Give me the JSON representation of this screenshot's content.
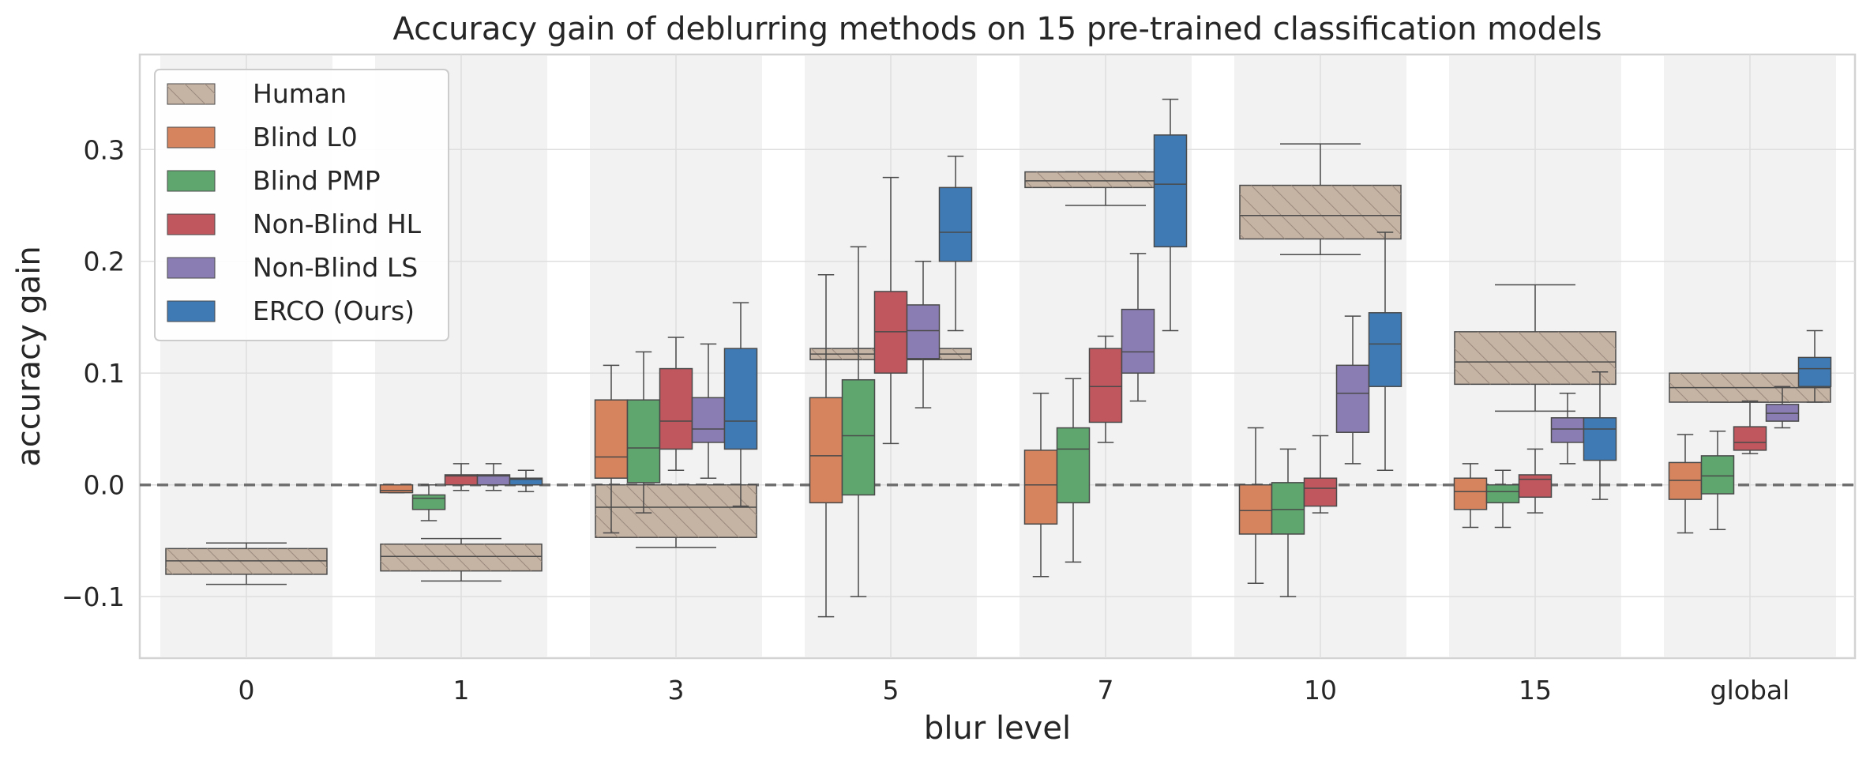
{
  "chart_data": {
    "type": "box",
    "title": "Accuracy gain of deblurring methods on 15 pre-trained classification models",
    "xlabel": "blur level",
    "ylabel": "accuracy gain",
    "ylim": [
      -0.155,
      0.385
    ],
    "yticks": [
      "−0.1",
      "0.0",
      "0.1",
      "0.2",
      "0.3"
    ],
    "ytick_values": [
      -0.1,
      0.0,
      0.1,
      0.2,
      0.3
    ],
    "reference_line": 0.0,
    "grid": true,
    "legend_position": "top-left",
    "categories": [
      "0",
      "1",
      "3",
      "5",
      "7",
      "10",
      "15",
      "global"
    ],
    "human": {
      "name": "Human",
      "color": "#c5b3a4",
      "boxes": [
        {
          "category": "0",
          "q1": -0.08,
          "median": -0.068,
          "q3": -0.057,
          "whisker_low": -0.089,
          "whisker_high": -0.052
        },
        {
          "category": "1",
          "q1": -0.077,
          "median": -0.064,
          "q3": -0.053,
          "whisker_low": -0.086,
          "whisker_high": -0.048
        },
        {
          "category": "3",
          "q1": -0.047,
          "median": -0.02,
          "q3": 0.0,
          "whisker_low": -0.056,
          "whisker_high": 0.0
        },
        {
          "category": "5",
          "q1": 0.112,
          "median": 0.117,
          "q3": 0.122,
          "whisker_low": 0.112,
          "whisker_high": 0.122
        },
        {
          "category": "7",
          "q1": 0.266,
          "median": 0.272,
          "q3": 0.28,
          "whisker_low": 0.25,
          "whisker_high": 0.28
        },
        {
          "category": "10",
          "q1": 0.22,
          "median": 0.241,
          "q3": 0.268,
          "whisker_low": 0.206,
          "whisker_high": 0.305
        },
        {
          "category": "15",
          "q1": 0.09,
          "median": 0.11,
          "q3": 0.137,
          "whisker_low": 0.066,
          "whisker_high": 0.179
        },
        {
          "category": "global",
          "q1": 0.074,
          "median": 0.087,
          "q3": 0.1,
          "whisker_low": 0.074,
          "whisker_high": 0.1
        }
      ]
    },
    "series": [
      {
        "name": "Blind L0",
        "color": "#d6845d",
        "boxes": [
          null,
          {
            "q1": -0.007,
            "median": -0.005,
            "q3": 0.0,
            "whisker_low": -0.007,
            "whisker_high": 0.0
          },
          {
            "q1": 0.006,
            "median": 0.025,
            "q3": 0.076,
            "whisker_low": -0.043,
            "whisker_high": 0.107
          },
          {
            "q1": -0.016,
            "median": 0.026,
            "q3": 0.078,
            "whisker_low": -0.118,
            "whisker_high": 0.188
          },
          {
            "q1": -0.035,
            "median": 0.0,
            "q3": 0.031,
            "whisker_low": -0.082,
            "whisker_high": 0.082
          },
          {
            "q1": -0.044,
            "median": -0.023,
            "q3": 0.0,
            "whisker_low": -0.088,
            "whisker_high": 0.051
          },
          {
            "q1": -0.022,
            "median": -0.006,
            "q3": 0.006,
            "whisker_low": -0.038,
            "whisker_high": 0.019
          },
          {
            "q1": -0.013,
            "median": 0.004,
            "q3": 0.02,
            "whisker_low": -0.043,
            "whisker_high": 0.045
          }
        ]
      },
      {
        "name": "Blind PMP",
        "color": "#5ea66e",
        "boxes": [
          null,
          {
            "q1": -0.022,
            "median": -0.012,
            "q3": -0.009,
            "whisker_low": -0.032,
            "whisker_high": 0.0
          },
          {
            "q1": 0.002,
            "median": 0.033,
            "q3": 0.076,
            "whisker_low": -0.025,
            "whisker_high": 0.119
          },
          {
            "q1": -0.009,
            "median": 0.044,
            "q3": 0.094,
            "whisker_low": -0.1,
            "whisker_high": 0.213
          },
          {
            "q1": -0.016,
            "median": 0.032,
            "q3": 0.051,
            "whisker_low": -0.069,
            "whisker_high": 0.095
          },
          {
            "q1": -0.044,
            "median": -0.022,
            "q3": 0.002,
            "whisker_low": -0.1,
            "whisker_high": 0.032
          },
          {
            "q1": -0.016,
            "median": -0.006,
            "q3": 0.0,
            "whisker_low": -0.038,
            "whisker_high": 0.013
          },
          {
            "q1": -0.008,
            "median": 0.008,
            "q3": 0.026,
            "whisker_low": -0.04,
            "whisker_high": 0.048
          }
        ]
      },
      {
        "name": "Non-Blind HL",
        "color": "#c0575e",
        "boxes": [
          null,
          {
            "q1": 0.0,
            "median": 0.008,
            "q3": 0.009,
            "whisker_low": -0.005,
            "whisker_high": 0.019
          },
          {
            "q1": 0.032,
            "median": 0.057,
            "q3": 0.104,
            "whisker_low": 0.013,
            "whisker_high": 0.132
          },
          {
            "q1": 0.1,
            "median": 0.137,
            "q3": 0.173,
            "whisker_low": 0.037,
            "whisker_high": 0.275
          },
          {
            "q1": 0.056,
            "median": 0.088,
            "q3": 0.122,
            "whisker_low": 0.038,
            "whisker_high": 0.133
          },
          {
            "q1": -0.019,
            "median": -0.003,
            "q3": 0.006,
            "whisker_low": -0.025,
            "whisker_high": 0.044
          },
          {
            "q1": -0.011,
            "median": 0.005,
            "q3": 0.009,
            "whisker_low": -0.025,
            "whisker_high": 0.032
          },
          {
            "q1": 0.031,
            "median": 0.038,
            "q3": 0.052,
            "whisker_low": 0.028,
            "whisker_high": 0.075
          }
        ]
      },
      {
        "name": "Non-Blind LS",
        "color": "#8a7db3",
        "boxes": [
          null,
          {
            "q1": 0.0,
            "median": 0.008,
            "q3": 0.009,
            "whisker_low": -0.005,
            "whisker_high": 0.019
          },
          {
            "q1": 0.038,
            "median": 0.05,
            "q3": 0.078,
            "whisker_low": 0.006,
            "whisker_high": 0.126
          },
          {
            "q1": 0.113,
            "median": 0.138,
            "q3": 0.161,
            "whisker_low": 0.069,
            "whisker_high": 0.2
          },
          {
            "q1": 0.1,
            "median": 0.119,
            "q3": 0.157,
            "whisker_low": 0.075,
            "whisker_high": 0.207
          },
          {
            "q1": 0.047,
            "median": 0.082,
            "q3": 0.107,
            "whisker_low": 0.019,
            "whisker_high": 0.151
          },
          {
            "q1": 0.038,
            "median": 0.05,
            "q3": 0.06,
            "whisker_low": 0.019,
            "whisker_high": 0.082
          },
          {
            "q1": 0.057,
            "median": 0.064,
            "q3": 0.072,
            "whisker_low": 0.051,
            "whisker_high": 0.088
          }
        ]
      },
      {
        "name": "ERCO (Ours)",
        "color": "#3f7ab5",
        "boxes": [
          null,
          {
            "q1": 0.0,
            "median": 0.005,
            "q3": 0.006,
            "whisker_low": -0.006,
            "whisker_high": 0.013
          },
          {
            "q1": 0.032,
            "median": 0.057,
            "q3": 0.122,
            "whisker_low": -0.019,
            "whisker_high": 0.163
          },
          {
            "q1": 0.2,
            "median": 0.226,
            "q3": 0.266,
            "whisker_low": 0.138,
            "whisker_high": 0.294
          },
          {
            "q1": 0.213,
            "median": 0.269,
            "q3": 0.313,
            "whisker_low": 0.138,
            "whisker_high": 0.345
          },
          {
            "q1": 0.088,
            "median": 0.126,
            "q3": 0.154,
            "whisker_low": 0.013,
            "whisker_high": 0.226
          },
          {
            "q1": 0.022,
            "median": 0.05,
            "q3": 0.06,
            "whisker_low": -0.013,
            "whisker_high": 0.101
          },
          {
            "q1": 0.088,
            "median": 0.104,
            "q3": 0.114,
            "whisker_low": 0.074,
            "whisker_high": 0.138
          }
        ]
      }
    ]
  }
}
